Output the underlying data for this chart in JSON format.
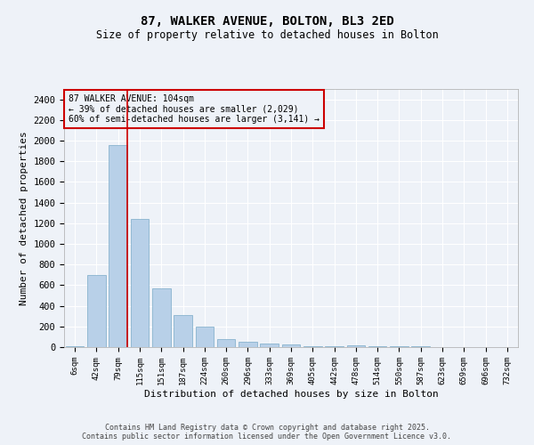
{
  "title_line1": "87, WALKER AVENUE, BOLTON, BL3 2ED",
  "title_line2": "Size of property relative to detached houses in Bolton",
  "xlabel": "Distribution of detached houses by size in Bolton",
  "ylabel": "Number of detached properties",
  "categories": [
    "6sqm",
    "42sqm",
    "79sqm",
    "115sqm",
    "151sqm",
    "187sqm",
    "224sqm",
    "260sqm",
    "296sqm",
    "333sqm",
    "369sqm",
    "405sqm",
    "442sqm",
    "478sqm",
    "514sqm",
    "550sqm",
    "587sqm",
    "623sqm",
    "659sqm",
    "696sqm",
    "732sqm"
  ],
  "values": [
    5,
    700,
    1960,
    1240,
    570,
    310,
    200,
    80,
    50,
    35,
    30,
    5,
    5,
    15,
    5,
    5,
    5,
    0,
    0,
    0,
    0
  ],
  "bar_color": "#b8d0e8",
  "bar_edge_color": "#7aaac8",
  "vline_color": "#cc0000",
  "vline_x": 2.43,
  "annotation_text": "87 WALKER AVENUE: 104sqm\n← 39% of detached houses are smaller (2,029)\n60% of semi-detached houses are larger (3,141) →",
  "annotation_box_color": "#cc0000",
  "ylim": [
    0,
    2500
  ],
  "yticks": [
    0,
    200,
    400,
    600,
    800,
    1000,
    1200,
    1400,
    1600,
    1800,
    2000,
    2200,
    2400
  ],
  "background_color": "#eef2f8",
  "grid_color": "#ffffff",
  "footer_line1": "Contains HM Land Registry data © Crown copyright and database right 2025.",
  "footer_line2": "Contains public sector information licensed under the Open Government Licence v3.0."
}
